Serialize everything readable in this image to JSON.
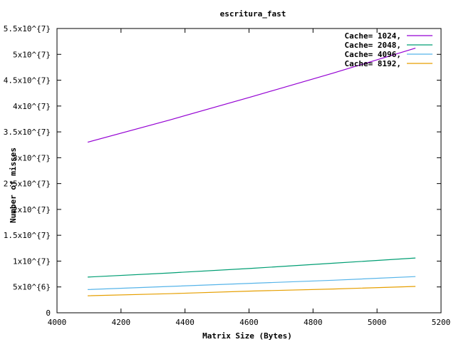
{
  "chart_data": {
    "type": "line",
    "title": "escritura_fast",
    "xlabel": "Matrix Size (Bytes)",
    "ylabel": "Number of misses",
    "xlim": [
      4000,
      5200
    ],
    "ylim": [
      0,
      55000000
    ],
    "x_ticks": [
      {
        "value": 4000,
        "label": "4000"
      },
      {
        "value": 4200,
        "label": "4200"
      },
      {
        "value": 4400,
        "label": "4400"
      },
      {
        "value": 4600,
        "label": "4600"
      },
      {
        "value": 4800,
        "label": "4800"
      },
      {
        "value": 5000,
        "label": "5000"
      },
      {
        "value": 5200,
        "label": "5200"
      }
    ],
    "y_ticks": [
      {
        "value": 0,
        "label": "0"
      },
      {
        "value": 5000000,
        "label": "5x10^{6}"
      },
      {
        "value": 10000000,
        "label": "1x10^{7}"
      },
      {
        "value": 15000000,
        "label": "1.5x10^{7}"
      },
      {
        "value": 20000000,
        "label": "2x10^{7}"
      },
      {
        "value": 25000000,
        "label": "2.5x10^{7}"
      },
      {
        "value": 30000000,
        "label": "3x10^{7}"
      },
      {
        "value": 35000000,
        "label": "3.5x10^{7}"
      },
      {
        "value": 40000000,
        "label": "4x10^{7}"
      },
      {
        "value": 45000000,
        "label": "4.5x10^{7}"
      },
      {
        "value": 50000000,
        "label": "5x10^{7}"
      },
      {
        "value": 55000000,
        "label": "5.5x10^{7}"
      }
    ],
    "x": [
      4096,
      4352,
      4608,
      4864,
      5120
    ],
    "series": [
      {
        "name": "Cache= 1024,",
        "color": "#9400d3",
        "values": [
          33000000,
          37300000,
          41800000,
          46400000,
          51200000
        ]
      },
      {
        "name": "Cache= 2048,",
        "color": "#009e73",
        "values": [
          6900000,
          7700000,
          8600000,
          9600000,
          10600000
        ]
      },
      {
        "name": "Cache= 4096,",
        "color": "#56b4e9",
        "values": [
          4500000,
          5100000,
          5700000,
          6300000,
          7000000
        ]
      },
      {
        "name": "Cache= 8192,",
        "color": "#e69f00",
        "values": [
          3300000,
          3700000,
          4200000,
          4600000,
          5100000
        ]
      }
    ],
    "grid": false,
    "legend": "top-right"
  }
}
